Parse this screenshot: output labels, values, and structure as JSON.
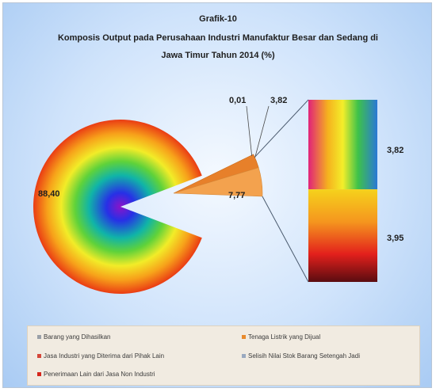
{
  "chart_data": {
    "type": "pie",
    "title_line1": "Grafik-10",
    "title_line2": "Komposis Output pada Perusahaan Industri Manufaktur Besar dan Sedang di",
    "title_line3": "Jawa Timur Tahun 2014 (%)",
    "slices": [
      {
        "name": "Barang yang Dihasilkan",
        "value": 88.4,
        "label": "88,40",
        "color": "#3a6fbf"
      },
      {
        "name": "Tenaga Listrik yang Dijual",
        "value": 3.82,
        "label": "3,82",
        "color": "#e88a2c"
      },
      {
        "name": "Jasa Industri yang Diterima dari Pihak Lain",
        "value": 7.77,
        "label": "7,77",
        "color": "#d4463a"
      },
      {
        "name": "Selisih Nilai Stok Barang Setengah Jadi",
        "value": 0.01,
        "label": "0,01",
        "color": "#9aa9bf"
      },
      {
        "name": "Penerimaan Lain dari Jasa Non Industri",
        "value": 0.0,
        "label": "",
        "color": "#d6261c"
      }
    ],
    "breakdown": [
      {
        "value": 3.82,
        "label": "3,82"
      },
      {
        "value": 3.95,
        "label": "3,95"
      }
    ],
    "legend_placement": "bottom"
  }
}
